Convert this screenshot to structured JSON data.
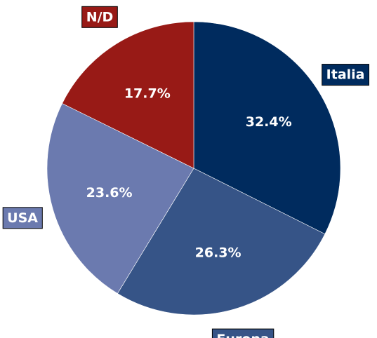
{
  "chart_data": {
    "type": "pie",
    "title": "",
    "start_angle_deg": 90,
    "direction": "clockwise",
    "slices": [
      {
        "label": "Italia",
        "value": 32.4,
        "pct_label": "32.4%",
        "color": "#002b5e"
      },
      {
        "label": "Europa",
        "value": 26.3,
        "pct_label": "26.3%",
        "color": "#365487"
      },
      {
        "label": "USA",
        "value": 23.6,
        "pct_label": "23.6%",
        "color": "#6b7aaf"
      },
      {
        "label": "N/D",
        "value": 17.7,
        "pct_label": "17.7%",
        "color": "#981a16"
      }
    ],
    "label_box_border": "#000000",
    "pct_text_color": "#ffffff"
  }
}
